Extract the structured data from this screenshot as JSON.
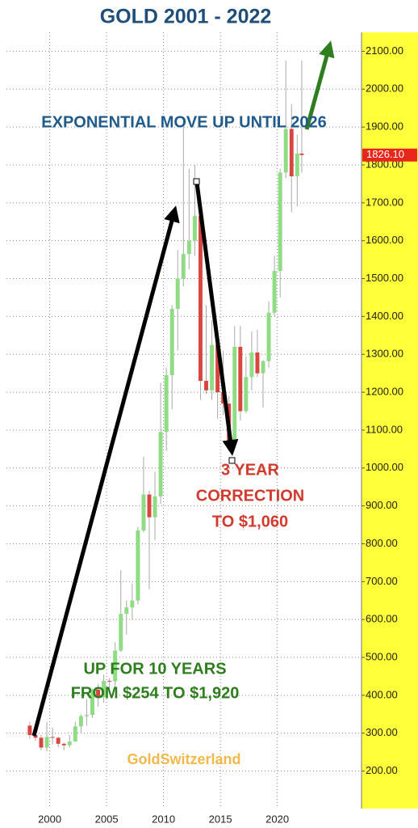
{
  "chart_data": {
    "type": "candlestick",
    "title": "GOLD   2001 - 2022",
    "x": [
      1998.25,
      1998.75,
      1999.25,
      1999.75,
      2000.25,
      2000.75,
      2001.25,
      2001.75,
      2002.25,
      2002.75,
      2003.25,
      2003.75,
      2004.25,
      2004.75,
      2005.25,
      2005.75,
      2006.25,
      2006.75,
      2007.25,
      2007.75,
      2008.25,
      2008.75,
      2009.25,
      2009.75,
      2010.25,
      2010.75,
      2011.25,
      2011.75,
      2012.25,
      2012.75,
      2013.25,
      2013.75,
      2014.25,
      2014.75,
      2015.25,
      2015.75,
      2016.25,
      2016.75,
      2017.25,
      2017.75,
      2018.25,
      2018.75,
      2019.25,
      2019.75,
      2020.25,
      2020.75,
      2021.25,
      2021.75,
      2022.15
    ],
    "open": [
      320,
      295,
      288,
      262,
      290,
      288,
      272,
      268,
      278,
      318,
      345,
      348,
      415,
      395,
      438,
      437,
      518,
      615,
      632,
      650,
      835,
      930,
      870,
      925,
      1095,
      1245,
      1420,
      1500,
      1565,
      1600,
      1665,
      1230,
      1205,
      1325,
      1200,
      1170,
      1062,
      1320,
      1150,
      1240,
      1305,
      1250,
      1282,
      1410,
      1520,
      1780,
      1895,
      1770,
      1830
    ],
    "high": [
      330,
      300,
      295,
      330,
      315,
      290,
      275,
      295,
      330,
      350,
      390,
      418,
      430,
      455,
      445,
      540,
      730,
      650,
      695,
      845,
      1030,
      940,
      990,
      1225,
      1265,
      1430,
      1575,
      1920,
      1790,
      1800,
      1695,
      1430,
      1390,
      1345,
      1310,
      1190,
      1375,
      1375,
      1295,
      1360,
      1365,
      1285,
      1440,
      1560,
      1790,
      2075,
      1960,
      1880,
      2075
    ],
    "low": [
      285,
      280,
      255,
      252,
      270,
      263,
      255,
      262,
      277,
      300,
      320,
      340,
      370,
      380,
      410,
      420,
      515,
      560,
      600,
      640,
      830,
      680,
      810,
      905,
      1045,
      1155,
      1310,
      1480,
      1525,
      1560,
      1180,
      1195,
      1180,
      1130,
      1140,
      1045,
      1060,
      1125,
      1145,
      1205,
      1240,
      1160,
      1265,
      1400,
      1450,
      1765,
      1675,
      1690,
      1780
    ],
    "close": [
      295,
      288,
      262,
      290,
      288,
      272,
      268,
      278,
      318,
      345,
      348,
      415,
      395,
      438,
      437,
      518,
      615,
      632,
      650,
      835,
      930,
      870,
      925,
      1095,
      1245,
      1420,
      1500,
      1565,
      1600,
      1665,
      1230,
      1205,
      1325,
      1200,
      1170,
      1062,
      1320,
      1150,
      1240,
      1305,
      1250,
      1282,
      1410,
      1520,
      1780,
      1895,
      1770,
      1830,
      1826.1
    ],
    "color_up": "#8fdc84",
    "color_down": "#d9463f",
    "wick_color": "#a9a9a9",
    "xlim": [
      1996.2,
      2027.4
    ],
    "xticks": [
      2000,
      2005,
      2010,
      2015,
      2020
    ],
    "ylim": [
      150,
      2150
    ],
    "yticks": [
      {
        "value": 200,
        "label": "200.00"
      },
      {
        "value": 300,
        "label": "300.00"
      },
      {
        "value": 400,
        "label": "400.00"
      },
      {
        "value": 500,
        "label": "500.00"
      },
      {
        "value": 600,
        "label": "600.00"
      },
      {
        "value": 700,
        "label": "700.00"
      },
      {
        "value": 800,
        "label": "800.00"
      },
      {
        "value": 900,
        "label": "900.00"
      },
      {
        "value": 1000,
        "label": "1000.00"
      },
      {
        "value": 1100,
        "label": "1100.00"
      },
      {
        "value": 1200,
        "label": "1200.00"
      },
      {
        "value": 1300,
        "label": "1300.00"
      },
      {
        "value": 1400,
        "label": "1400.00"
      },
      {
        "value": 1500,
        "label": "1500.00"
      },
      {
        "value": 1600,
        "label": "1600.00"
      },
      {
        "value": 1700,
        "label": "1700.00"
      },
      {
        "value": 1800,
        "label": "1800.00"
      },
      {
        "value": 1900,
        "label": "1900.00"
      },
      {
        "value": 2000,
        "label": "2000.00"
      },
      {
        "value": 2100,
        "label": "2100.00"
      }
    ],
    "grid": true,
    "last_price": {
      "value": 1826.1,
      "label": "1826.10"
    },
    "annotations": {
      "headline": "EXPONENTIAL MOVE UP UNTIL 2026",
      "correction": [
        "3 YEAR",
        "CORRECTION",
        "TO $1,060"
      ],
      "rally": [
        "UP FOR 10 YEARS",
        "FROM $254 TO $1,920"
      ],
      "watermark": "GoldSwitzerland"
    }
  }
}
